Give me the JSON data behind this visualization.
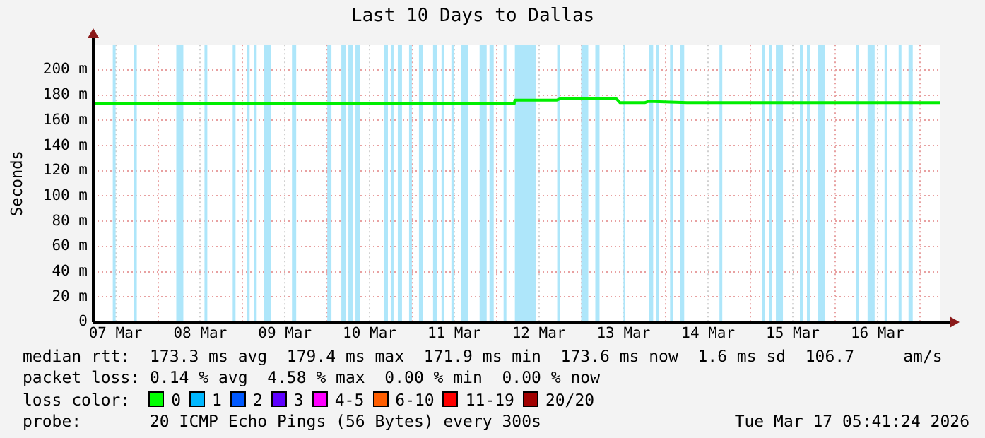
{
  "chart_data": {
    "type": "line",
    "title": "Last 10 Days to Dallas",
    "ylabel": "Seconds",
    "xlim": [
      "2026-03-07T05:40",
      "2026-03-17T05:40"
    ],
    "xticks": [
      {
        "value": "2026-03-08T00:00",
        "label": null
      },
      {
        "value": "2026-03-09T00:00",
        "label": null
      },
      {
        "value": "2026-03-10T00:00",
        "label": null
      },
      {
        "value": "2026-03-11T00:00",
        "label": null
      },
      {
        "value": "2026-03-12T00:00",
        "label": null
      },
      {
        "value": "2026-03-13T00:00",
        "label": null
      },
      {
        "value": "2026-03-14T00:00",
        "label": null
      },
      {
        "value": "2026-03-15T00:00",
        "label": null
      },
      {
        "value": "2026-03-16T00:00",
        "label": null
      },
      {
        "value": "2026-03-17T00:00",
        "label": null
      },
      {
        "value": "2026-03-07T12:00",
        "label": "07 Mar"
      },
      {
        "value": "2026-03-08T12:00",
        "label": "08 Mar"
      },
      {
        "value": "2026-03-09T12:00",
        "label": "09 Mar"
      },
      {
        "value": "2026-03-10T12:00",
        "label": "10 Mar"
      },
      {
        "value": "2026-03-11T12:00",
        "label": "11 Mar"
      },
      {
        "value": "2026-03-12T12:00",
        "label": "12 Mar"
      },
      {
        "value": "2026-03-13T12:00",
        "label": "13 Mar"
      },
      {
        "value": "2026-03-14T12:00",
        "label": "14 Mar"
      },
      {
        "value": "2026-03-15T12:00",
        "label": "15 Mar"
      },
      {
        "value": "2026-03-16T12:00",
        "label": "16 Mar"
      }
    ],
    "ylim": [
      0,
      220
    ],
    "yticks": [
      {
        "value": 0,
        "label": "0"
      },
      {
        "value": 20,
        "label": "20 m"
      },
      {
        "value": 40,
        "label": "40 m"
      },
      {
        "value": 60,
        "label": "60 m"
      },
      {
        "value": 80,
        "label": "80 m"
      },
      {
        "value": 100,
        "label": "100 m"
      },
      {
        "value": 120,
        "label": "120 m"
      },
      {
        "value": 140,
        "label": "140 m"
      },
      {
        "value": 160,
        "label": "160 m"
      },
      {
        "value": 180,
        "label": "180 m"
      },
      {
        "value": 200,
        "label": "200 m"
      }
    ],
    "grid": true,
    "legend": false,
    "series": [
      {
        "color": "#00ee00",
        "x": [
          "2026-03-07T05:40",
          "2026-03-11T21:00",
          "2026-03-12T05:00",
          "2026-03-12T05:12",
          "2026-03-12T17:00",
          "2026-03-12T18:00",
          "2026-03-13T10:00",
          "2026-03-13T11:00",
          "2026-03-13T18:00",
          "2026-03-13T19:00",
          "2026-03-14T06:00",
          "2026-03-17T05:40"
        ],
        "values": [
          173,
          173,
          173,
          176,
          176,
          177,
          177,
          174,
          174,
          175,
          174,
          174
        ]
      }
    ],
    "bands": [
      {
        "axis": "x",
        "from": "2026-03-07T11:12",
        "to": "2026-03-07T12:00",
        "color": "#aee6fa"
      },
      {
        "axis": "x",
        "from": "2026-03-07T17:12",
        "to": "2026-03-07T18:00",
        "color": "#aee6fa"
      },
      {
        "axis": "x",
        "from": "2026-03-08T05:12",
        "to": "2026-03-08T07:12",
        "color": "#aee6fa"
      },
      {
        "axis": "x",
        "from": "2026-03-08T13:12",
        "to": "2026-03-08T14:00",
        "color": "#aee6fa"
      },
      {
        "axis": "x",
        "from": "2026-03-08T21:12",
        "to": "2026-03-08T22:00",
        "color": "#aee6fa"
      },
      {
        "axis": "x",
        "from": "2026-03-09T01:12",
        "to": "2026-03-09T02:00",
        "color": "#aee6fa"
      },
      {
        "axis": "x",
        "from": "2026-03-09T03:12",
        "to": "2026-03-09T04:00",
        "color": "#aee6fa"
      },
      {
        "axis": "x",
        "from": "2026-03-09T06:00",
        "to": "2026-03-09T08:00",
        "color": "#aee6fa"
      },
      {
        "axis": "x",
        "from": "2026-03-09T14:00",
        "to": "2026-03-09T15:12",
        "color": "#aee6fa"
      },
      {
        "axis": "x",
        "from": "2026-03-10T00:00",
        "to": "2026-03-10T01:12",
        "color": "#aee6fa"
      },
      {
        "axis": "x",
        "from": "2026-03-10T04:00",
        "to": "2026-03-10T05:12",
        "color": "#aee6fa"
      },
      {
        "axis": "x",
        "from": "2026-03-10T06:00",
        "to": "2026-03-10T07:12",
        "color": "#aee6fa"
      },
      {
        "axis": "x",
        "from": "2026-03-10T08:00",
        "to": "2026-03-10T09:12",
        "color": "#aee6fa"
      },
      {
        "axis": "x",
        "from": "2026-03-10T16:00",
        "to": "2026-03-10T17:12",
        "color": "#aee6fa"
      },
      {
        "axis": "x",
        "from": "2026-03-10T18:00",
        "to": "2026-03-10T18:48",
        "color": "#aee6fa"
      },
      {
        "axis": "x",
        "from": "2026-03-10T20:00",
        "to": "2026-03-10T21:12",
        "color": "#aee6fa"
      },
      {
        "axis": "x",
        "from": "2026-03-10T23:12",
        "to": "2026-03-11T00:00",
        "color": "#aee6fa"
      },
      {
        "axis": "x",
        "from": "2026-03-11T02:00",
        "to": "2026-03-11T03:12",
        "color": "#aee6fa"
      },
      {
        "axis": "x",
        "from": "2026-03-11T06:00",
        "to": "2026-03-11T07:12",
        "color": "#aee6fa"
      },
      {
        "axis": "x",
        "from": "2026-03-11T08:24",
        "to": "2026-03-11T09:12",
        "color": "#aee6fa"
      },
      {
        "axis": "x",
        "from": "2026-03-11T11:12",
        "to": "2026-03-11T12:00",
        "color": "#aee6fa"
      },
      {
        "axis": "x",
        "from": "2026-03-11T14:00",
        "to": "2026-03-11T16:00",
        "color": "#aee6fa"
      },
      {
        "axis": "x",
        "from": "2026-03-11T19:12",
        "to": "2026-03-11T21:12",
        "color": "#aee6fa"
      },
      {
        "axis": "x",
        "from": "2026-03-11T22:00",
        "to": "2026-03-11T23:12",
        "color": "#aee6fa"
      },
      {
        "axis": "x",
        "from": "2026-03-12T02:00",
        "to": "2026-03-12T02:48",
        "color": "#aee6fa"
      },
      {
        "axis": "x",
        "from": "2026-03-12T05:12",
        "to": "2026-03-12T11:12",
        "color": "#aee6fa"
      },
      {
        "axis": "x",
        "from": "2026-03-12T17:12",
        "to": "2026-03-12T18:00",
        "color": "#aee6fa"
      },
      {
        "axis": "x",
        "from": "2026-03-13T00:00",
        "to": "2026-03-13T02:00",
        "color": "#aee6fa"
      },
      {
        "axis": "x",
        "from": "2026-03-13T04:00",
        "to": "2026-03-13T05:12",
        "color": "#aee6fa"
      },
      {
        "axis": "x",
        "from": "2026-03-13T12:00",
        "to": "2026-03-13T12:24",
        "color": "#aee6fa"
      },
      {
        "axis": "x",
        "from": "2026-03-13T19:12",
        "to": "2026-03-13T20:24",
        "color": "#aee6fa"
      },
      {
        "axis": "x",
        "from": "2026-03-13T21:12",
        "to": "2026-03-13T22:00",
        "color": "#aee6fa"
      },
      {
        "axis": "x",
        "from": "2026-03-14T01:12",
        "to": "2026-03-14T02:00",
        "color": "#aee6fa"
      },
      {
        "axis": "x",
        "from": "2026-03-14T04:00",
        "to": "2026-03-14T05:12",
        "color": "#aee6fa"
      },
      {
        "axis": "x",
        "from": "2026-03-14T15:12",
        "to": "2026-03-14T16:00",
        "color": "#aee6fa"
      },
      {
        "axis": "x",
        "from": "2026-03-15T03:12",
        "to": "2026-03-15T04:00",
        "color": "#aee6fa"
      },
      {
        "axis": "x",
        "from": "2026-03-15T05:12",
        "to": "2026-03-15T06:00",
        "color": "#aee6fa"
      },
      {
        "axis": "x",
        "from": "2026-03-15T07:12",
        "to": "2026-03-15T09:12",
        "color": "#aee6fa"
      },
      {
        "axis": "x",
        "from": "2026-03-15T14:00",
        "to": "2026-03-15T14:48",
        "color": "#aee6fa"
      },
      {
        "axis": "x",
        "from": "2026-03-15T16:00",
        "to": "2026-03-15T16:48",
        "color": "#aee6fa"
      },
      {
        "axis": "x",
        "from": "2026-03-15T19:12",
        "to": "2026-03-15T21:12",
        "color": "#aee6fa"
      },
      {
        "axis": "x",
        "from": "2026-03-16T06:00",
        "to": "2026-03-16T06:48",
        "color": "#aee6fa"
      },
      {
        "axis": "x",
        "from": "2026-03-16T09:12",
        "to": "2026-03-16T11:12",
        "color": "#aee6fa"
      },
      {
        "axis": "x",
        "from": "2026-03-16T14:00",
        "to": "2026-03-16T14:48",
        "color": "#aee6fa"
      },
      {
        "axis": "x",
        "from": "2026-03-16T18:00",
        "to": "2026-03-16T18:48",
        "color": "#aee6fa"
      },
      {
        "axis": "x",
        "from": "2026-03-16T20:48",
        "to": "2026-03-16T22:00",
        "color": "#aee6fa"
      }
    ],
    "annotations": [
      "median rtt:  173.3 ms avg  179.4 ms max  171.9 ms min  173.6 ms now  1.6 ms sd  106.7     am/s",
      "packet loss: 0.14 % avg  4.58 % max  0.00 % min  0.00 % now",
      "loss color:",
      "0",
      "1",
      "2",
      "3",
      "4-5",
      "6-10",
      "11-19",
      "20/20",
      "probe:       20 ICMP Echo Pings (56 Bytes) every 300s",
      "Tue Mar 17 05:41:24 2026"
    ]
  }
}
